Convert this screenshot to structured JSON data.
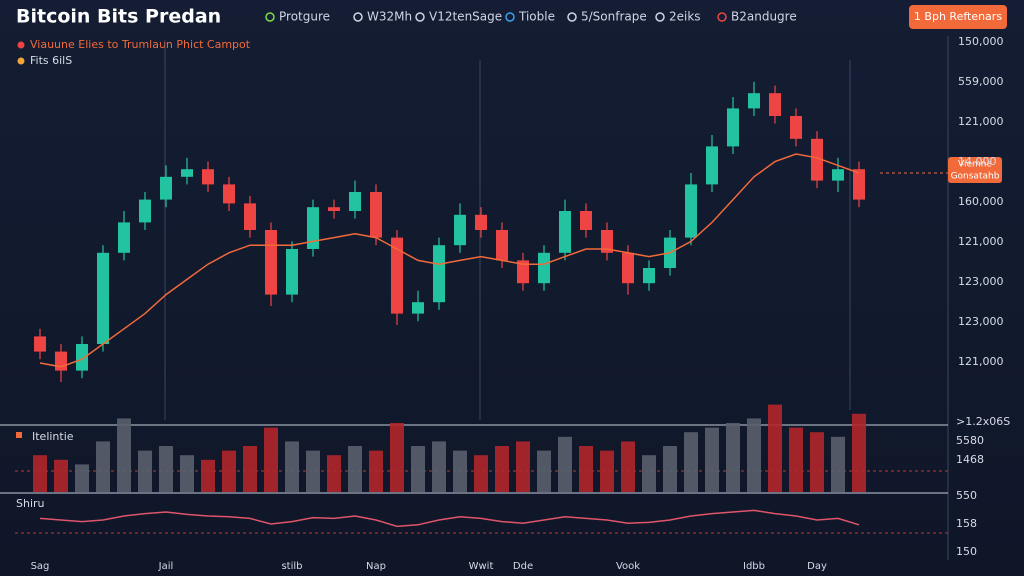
{
  "header": {
    "title": "Bitcoin Bits Predan",
    "tabs": [
      "Protgure",
      "W32Mh",
      "V12tenSage",
      "Tioble",
      "5/Sonfrape",
      "2eiks",
      "B2andugre"
    ],
    "button": "1 Bph Reftenars"
  },
  "legend": [
    "Viauune Elies to Trumlaun Phict Campot",
    "Fits 6ilS"
  ],
  "price_tag": [
    "Viemne",
    "Gonsatahb"
  ],
  "price_axis_labels": [
    "150,000",
    "559,000",
    "121,000",
    "14,000",
    "160,000",
    "121,000",
    "123,000",
    "123,000",
    "121,000"
  ],
  "volume_panel": {
    "title": "Itelintie",
    "axis_labels": [
      ">1.2x06S",
      "5580",
      "1468"
    ]
  },
  "rsi_panel": {
    "title": "Shiru",
    "axis_labels": [
      "550",
      "158",
      "150"
    ]
  },
  "chart_data": [
    {
      "type": "candlestick",
      "categories": [
        "Sag",
        null,
        null,
        null,
        null,
        null,
        "Jail",
        null,
        null,
        null,
        null,
        null,
        "stilb",
        null,
        null,
        null,
        "Nap",
        null,
        null,
        null,
        null,
        "Wwit",
        null,
        "Dde",
        null,
        null,
        null,
        null,
        "Vook",
        null,
        null,
        null,
        null,
        null,
        "Idbb",
        null,
        null,
        "Day",
        null,
        null
      ],
      "ylim": [
        0,
        100
      ],
      "up_color": "#22c3a0",
      "down_color": "#ef4444",
      "open": [
        22,
        18,
        13,
        20,
        44,
        52,
        58,
        64,
        66,
        62,
        57,
        50,
        33,
        45,
        56,
        55,
        60,
        48,
        28,
        31,
        46,
        54,
        50,
        42,
        36,
        44,
        55,
        50,
        44,
        36,
        40,
        48,
        62,
        72,
        82,
        86,
        80,
        74,
        63,
        66
      ],
      "high": [
        24,
        20,
        22,
        46,
        55,
        60,
        67,
        69,
        68,
        64,
        59,
        52,
        47,
        58,
        58,
        63,
        62,
        50,
        34,
        48,
        57,
        56,
        52,
        44,
        46,
        58,
        57,
        52,
        46,
        42,
        50,
        65,
        75,
        85,
        89,
        88,
        82,
        76,
        69,
        68
      ],
      "low": [
        16,
        10,
        11,
        18,
        42,
        50,
        56,
        62,
        60,
        55,
        48,
        30,
        31,
        43,
        53,
        53,
        46,
        25,
        26,
        29,
        44,
        48,
        40,
        34,
        34,
        42,
        48,
        42,
        33,
        34,
        38,
        46,
        60,
        70,
        80,
        78,
        72,
        61,
        60,
        56
      ],
      "close": [
        18,
        13,
        20,
        44,
        52,
        58,
        64,
        66,
        62,
        57,
        50,
        33,
        45,
        56,
        55,
        60,
        48,
        28,
        31,
        46,
        54,
        50,
        42,
        36,
        44,
        55,
        50,
        44,
        36,
        40,
        48,
        62,
        72,
        82,
        86,
        80,
        74,
        63,
        66,
        58
      ],
      "series": [
        {
          "name": "Fits 6ilS",
          "color": "#f26a3a",
          "values": [
            15,
            14,
            16,
            20,
            24,
            28,
            33,
            37,
            41,
            44,
            46,
            46,
            46,
            47,
            48,
            49,
            48,
            45,
            42,
            41,
            42,
            43,
            42,
            41,
            41,
            43,
            45,
            45,
            44,
            43,
            44,
            47,
            52,
            58,
            64,
            68,
            70,
            69,
            67,
            65
          ]
        }
      ]
    },
    {
      "type": "bar",
      "ylim": [
        0,
        100
      ],
      "colors": {
        "up": "#5a5f6b",
        "down": "#b3262b"
      },
      "values": [
        40,
        35,
        30,
        55,
        80,
        45,
        50,
        40,
        35,
        45,
        50,
        70,
        55,
        45,
        40,
        50,
        45,
        75,
        50,
        55,
        45,
        40,
        50,
        55,
        45,
        60,
        50,
        45,
        55,
        40,
        50,
        65,
        70,
        75,
        80,
        95,
        70,
        65,
        60,
        85
      ]
    },
    {
      "type": "line",
      "ylim": [
        0,
        100
      ],
      "color": "#e0556a",
      "values": [
        52,
        50,
        48,
        50,
        55,
        58,
        60,
        57,
        55,
        54,
        52,
        45,
        48,
        53,
        52,
        55,
        50,
        42,
        44,
        50,
        54,
        52,
        48,
        46,
        50,
        54,
        52,
        50,
        46,
        47,
        50,
        55,
        58,
        60,
        62,
        58,
        55,
        50,
        52,
        44
      ]
    }
  ]
}
